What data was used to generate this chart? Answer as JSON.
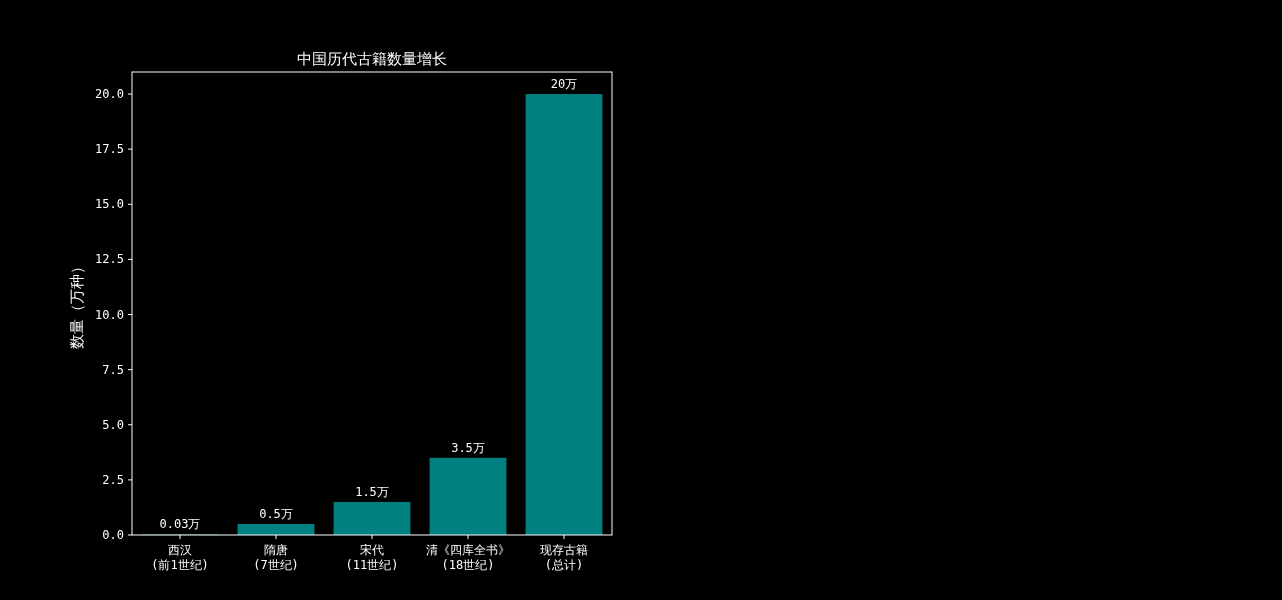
{
  "chart_data": {
    "type": "bar",
    "title": "中国历代古籍数量增长",
    "ylabel": "数量（万种）",
    "categories": [
      "西汉\n(前1世纪)",
      "隋唐\n(7世纪)",
      "宋代\n(11世纪)",
      "清《四库全书》\n(18世纪)",
      "现存古籍\n(总计)"
    ],
    "values": [
      0.03,
      0.5,
      1.5,
      3.5,
      20
    ],
    "value_labels": [
      "0.03万",
      "0.5万",
      "1.5万",
      "3.5万",
      "20万"
    ],
    "color": "#008080",
    "ylim": [
      0,
      21
    ],
    "yticks": [
      {
        "value": 0,
        "label": "0.0"
      },
      2.5,
      {
        "value": 5,
        "label": "5.0"
      },
      7.5,
      {
        "value": 10,
        "label": "10.0"
      },
      12.5,
      {
        "value": 15,
        "label": "15.0"
      },
      17.5,
      {
        "value": 20,
        "label": "20.0"
      }
    ],
    "grid": false
  }
}
